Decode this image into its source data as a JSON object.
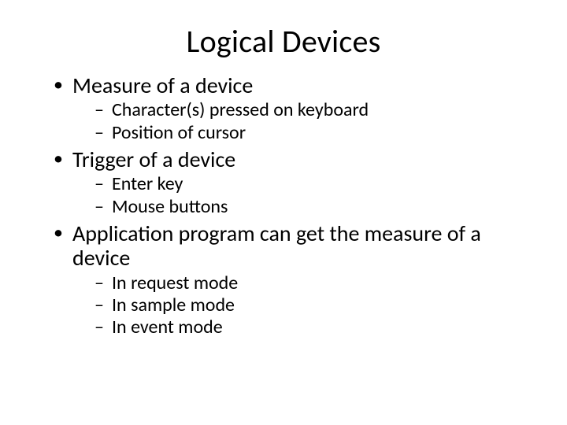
{
  "slide": {
    "title": "Logical Devices",
    "background_color": "#ffffff",
    "text_color": "#000000",
    "title_fontsize": 40,
    "bullets": [
      {
        "text": "Measure of a device",
        "fontsize": 28,
        "sub": [
          {
            "text": "Character(s) pressed on keyboard",
            "fontsize": 24
          },
          {
            "text": "Position of cursor",
            "fontsize": 24
          }
        ]
      },
      {
        "text": "Trigger of a device",
        "fontsize": 28,
        "sub": [
          {
            "text": "Enter key",
            "fontsize": 24
          },
          {
            "text": "Mouse buttons",
            "fontsize": 24
          }
        ]
      },
      {
        "text": "Application program can get the measure of a device",
        "fontsize": 28,
        "sub": [
          {
            "text": "In request mode",
            "fontsize": 24
          },
          {
            "text": "In sample mode",
            "fontsize": 24
          },
          {
            "text": "In event mode",
            "fontsize": 24
          }
        ]
      }
    ]
  }
}
